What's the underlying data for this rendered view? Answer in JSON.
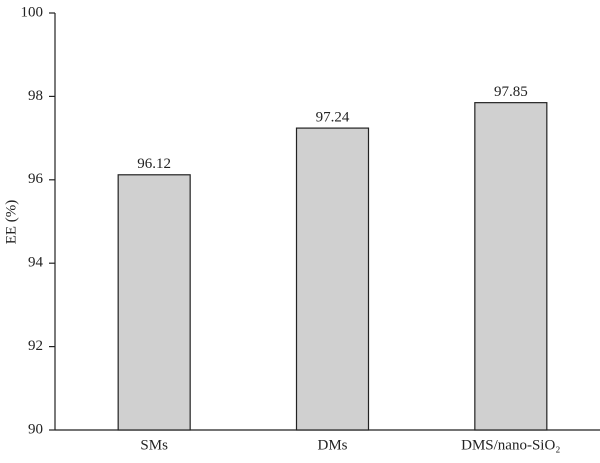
{
  "chart_data": {
    "type": "bar",
    "ylabel": "EE (%)",
    "categories": [
      "SMs",
      "DMs",
      "DMS/nano-SiO₂"
    ],
    "values": [
      96.12,
      97.24,
      97.85
    ],
    "color": "#d0d0d0",
    "ylim": [
      90,
      100
    ],
    "yticks": [
      90,
      92,
      94,
      96,
      98,
      100
    ],
    "grid": false
  }
}
